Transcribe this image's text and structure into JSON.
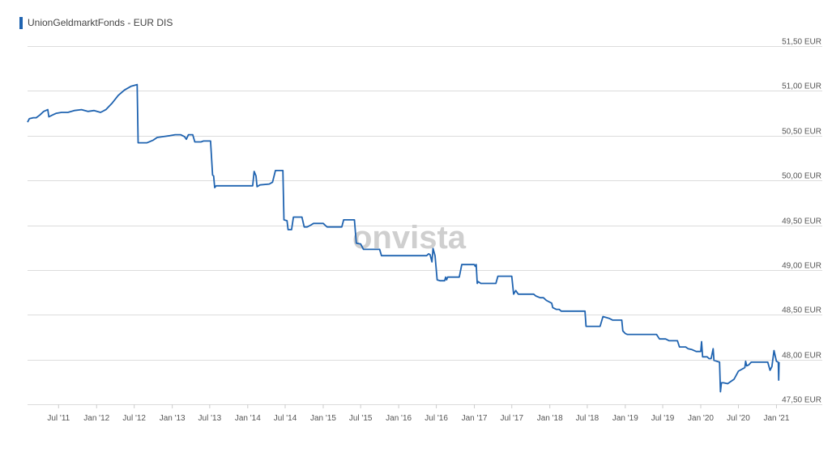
{
  "legend": {
    "label": "UnionGeldmarktFonds - EUR DIS",
    "color": "#1f63b0"
  },
  "watermark": "onvista",
  "chart_data": {
    "type": "line",
    "title": "",
    "xlabel": "",
    "ylabel": "",
    "ylim": [
      47.5,
      51.5
    ],
    "xlim": [
      "2011-02-01",
      "2021-01-15"
    ],
    "y_ticks": [
      {
        "value": 47.5,
        "label": "47,50 EUR"
      },
      {
        "value": 48.0,
        "label": "48,00 EUR"
      },
      {
        "value": 48.5,
        "label": "48,50 EUR"
      },
      {
        "value": 49.0,
        "label": "49,00 EUR"
      },
      {
        "value": 49.5,
        "label": "49,50 EUR"
      },
      {
        "value": 50.0,
        "label": "50,00 EUR"
      },
      {
        "value": 50.5,
        "label": "50,50 EUR"
      },
      {
        "value": 51.0,
        "label": "51,00 EUR"
      },
      {
        "value": 51.5,
        "label": "51,50 EUR"
      }
    ],
    "x_ticks": [
      {
        "value": "2011-07-01",
        "label": "Jul '11"
      },
      {
        "value": "2012-01-01",
        "label": "Jan '12"
      },
      {
        "value": "2012-07-01",
        "label": "Jul '12"
      },
      {
        "value": "2013-01-01",
        "label": "Jan '13"
      },
      {
        "value": "2013-07-01",
        "label": "Jul '13"
      },
      {
        "value": "2014-01-01",
        "label": "Jan '14"
      },
      {
        "value": "2014-07-01",
        "label": "Jul '14"
      },
      {
        "value": "2015-01-01",
        "label": "Jan '15"
      },
      {
        "value": "2015-07-01",
        "label": "Jul '15"
      },
      {
        "value": "2016-01-01",
        "label": "Jan '16"
      },
      {
        "value": "2016-07-01",
        "label": "Jul '16"
      },
      {
        "value": "2017-01-01",
        "label": "Jan '17"
      },
      {
        "value": "2017-07-01",
        "label": "Jul '17"
      },
      {
        "value": "2018-01-01",
        "label": "Jan '18"
      },
      {
        "value": "2018-07-01",
        "label": "Jul '18"
      },
      {
        "value": "2019-01-01",
        "label": "Jan '19"
      },
      {
        "value": "2019-07-01",
        "label": "Jul '19"
      },
      {
        "value": "2020-01-01",
        "label": "Jan '20"
      },
      {
        "value": "2020-07-01",
        "label": "Jul '20"
      },
      {
        "value": "2021-01-01",
        "label": "Jan '21"
      }
    ],
    "grid": true,
    "y_axis_side": "right",
    "series": [
      {
        "name": "UnionGeldmarktFonds - EUR DIS",
        "color": "#1f63b0",
        "points": [
          [
            "2011-02-01",
            50.65
          ],
          [
            "2011-02-10",
            50.69
          ],
          [
            "2011-03-01",
            50.7
          ],
          [
            "2011-03-15",
            50.7
          ],
          [
            "2011-04-01",
            50.73
          ],
          [
            "2011-04-20",
            50.77
          ],
          [
            "2011-05-10",
            50.79
          ],
          [
            "2011-05-15",
            50.71
          ],
          [
            "2011-06-01",
            50.73
          ],
          [
            "2011-06-20",
            50.75
          ],
          [
            "2011-07-15",
            50.76
          ],
          [
            "2011-08-15",
            50.76
          ],
          [
            "2011-09-15",
            50.78
          ],
          [
            "2011-10-20",
            50.79
          ],
          [
            "2011-11-20",
            50.77
          ],
          [
            "2011-12-20",
            50.78
          ],
          [
            "2012-01-20",
            50.76
          ],
          [
            "2012-02-15",
            50.79
          ],
          [
            "2012-03-15",
            50.86
          ],
          [
            "2012-04-15",
            50.95
          ],
          [
            "2012-05-15",
            51.01
          ],
          [
            "2012-06-15",
            51.05
          ],
          [
            "2012-07-15",
            51.07
          ],
          [
            "2012-07-20",
            50.42
          ],
          [
            "2012-09-01",
            50.42
          ],
          [
            "2012-10-01",
            50.45
          ],
          [
            "2012-10-20",
            50.48
          ],
          [
            "2012-11-20",
            50.49
          ],
          [
            "2012-12-20",
            50.5
          ],
          [
            "2013-01-15",
            50.51
          ],
          [
            "2013-02-10",
            50.51
          ],
          [
            "2013-03-01",
            50.49
          ],
          [
            "2013-03-10",
            50.46
          ],
          [
            "2013-03-20",
            50.51
          ],
          [
            "2013-04-10",
            50.51
          ],
          [
            "2013-04-20",
            50.43
          ],
          [
            "2013-05-20",
            50.43
          ],
          [
            "2013-06-01",
            50.44
          ],
          [
            "2013-07-05",
            50.44
          ],
          [
            "2013-07-15",
            50.06
          ],
          [
            "2013-07-20",
            50.05
          ],
          [
            "2013-07-25",
            49.92
          ],
          [
            "2013-08-01",
            49.94
          ],
          [
            "2014-01-25",
            49.94
          ],
          [
            "2014-02-01",
            50.1
          ],
          [
            "2014-02-10",
            50.05
          ],
          [
            "2014-02-15",
            49.93
          ],
          [
            "2014-03-01",
            49.95
          ],
          [
            "2014-04-15",
            49.96
          ],
          [
            "2014-05-01",
            49.98
          ],
          [
            "2014-05-15",
            50.11
          ],
          [
            "2014-06-20",
            50.11
          ],
          [
            "2014-06-25",
            49.56
          ],
          [
            "2014-07-10",
            49.55
          ],
          [
            "2014-07-15",
            49.45
          ],
          [
            "2014-08-01",
            49.45
          ],
          [
            "2014-08-10",
            49.59
          ],
          [
            "2014-09-20",
            49.59
          ],
          [
            "2014-10-01",
            49.48
          ],
          [
            "2014-10-15",
            49.48
          ],
          [
            "2014-11-01",
            49.5
          ],
          [
            "2014-11-15",
            49.52
          ],
          [
            "2015-01-01",
            49.52
          ],
          [
            "2015-01-15",
            49.49
          ],
          [
            "2015-01-20",
            49.48
          ],
          [
            "2015-04-01",
            49.48
          ],
          [
            "2015-04-10",
            49.56
          ],
          [
            "2015-06-01",
            49.56
          ],
          [
            "2015-06-10",
            49.3
          ],
          [
            "2015-07-01",
            49.29
          ],
          [
            "2015-07-15",
            49.23
          ],
          [
            "2015-10-01",
            49.23
          ],
          [
            "2015-10-10",
            49.16
          ],
          [
            "2016-05-15",
            49.16
          ],
          [
            "2016-05-25",
            49.18
          ],
          [
            "2016-06-01",
            49.17
          ],
          [
            "2016-06-10",
            49.09
          ],
          [
            "2016-06-15",
            49.24
          ],
          [
            "2016-06-25",
            49.16
          ],
          [
            "2016-07-05",
            48.89
          ],
          [
            "2016-07-20",
            48.88
          ],
          [
            "2016-08-10",
            48.88
          ],
          [
            "2016-08-15",
            48.92
          ],
          [
            "2016-08-20",
            48.89
          ],
          [
            "2016-08-25",
            48.92
          ],
          [
            "2016-10-20",
            48.92
          ],
          [
            "2016-11-01",
            49.06
          ],
          [
            "2017-01-01",
            49.06
          ],
          [
            "2017-01-05",
            49.04
          ],
          [
            "2017-01-10",
            49.06
          ],
          [
            "2017-01-15",
            48.85
          ],
          [
            "2017-01-20",
            48.87
          ],
          [
            "2017-02-01",
            48.85
          ],
          [
            "2017-04-15",
            48.85
          ],
          [
            "2017-04-25",
            48.93
          ],
          [
            "2017-07-01",
            48.93
          ],
          [
            "2017-07-10",
            48.73
          ],
          [
            "2017-07-20",
            48.77
          ],
          [
            "2017-08-01",
            48.73
          ],
          [
            "2017-10-15",
            48.73
          ],
          [
            "2017-10-25",
            48.71
          ],
          [
            "2017-11-15",
            48.69
          ],
          [
            "2017-12-01",
            48.69
          ],
          [
            "2017-12-15",
            48.66
          ],
          [
            "2018-01-10",
            48.63
          ],
          [
            "2018-01-15",
            48.58
          ],
          [
            "2018-02-01",
            48.56
          ],
          [
            "2018-02-15",
            48.56
          ],
          [
            "2018-02-25",
            48.54
          ],
          [
            "2018-06-20",
            48.54
          ],
          [
            "2018-06-25",
            48.37
          ],
          [
            "2018-09-01",
            48.37
          ],
          [
            "2018-09-15",
            48.48
          ],
          [
            "2018-10-15",
            48.46
          ],
          [
            "2018-11-01",
            48.44
          ],
          [
            "2018-12-15",
            48.44
          ],
          [
            "2018-12-20",
            48.32
          ],
          [
            "2019-01-01",
            48.29
          ],
          [
            "2019-01-10",
            48.28
          ],
          [
            "2019-06-01",
            48.28
          ],
          [
            "2019-06-15",
            48.23
          ],
          [
            "2019-07-15",
            48.23
          ],
          [
            "2019-08-01",
            48.21
          ],
          [
            "2019-09-10",
            48.21
          ],
          [
            "2019-09-20",
            48.14
          ],
          [
            "2019-10-20",
            48.14
          ],
          [
            "2019-11-01",
            48.12
          ],
          [
            "2019-11-20",
            48.11
          ],
          [
            "2019-12-10",
            48.09
          ],
          [
            "2020-01-01",
            48.09
          ],
          [
            "2020-01-05",
            48.2
          ],
          [
            "2020-01-10",
            48.03
          ],
          [
            "2020-02-01",
            48.03
          ],
          [
            "2020-02-10",
            48.01
          ],
          [
            "2020-02-20",
            48.01
          ],
          [
            "2020-03-01",
            48.12
          ],
          [
            "2020-03-05",
            47.99
          ],
          [
            "2020-04-01",
            47.97
          ],
          [
            "2020-04-05",
            47.64
          ],
          [
            "2020-04-10",
            47.74
          ],
          [
            "2020-04-20",
            47.74
          ],
          [
            "2020-05-10",
            47.73
          ],
          [
            "2020-06-10",
            47.78
          ],
          [
            "2020-07-01",
            47.87
          ],
          [
            "2020-08-01",
            47.91
          ],
          [
            "2020-08-05",
            47.98
          ],
          [
            "2020-08-10",
            47.93
          ],
          [
            "2020-08-20",
            47.94
          ],
          [
            "2020-09-01",
            47.97
          ],
          [
            "2020-11-20",
            47.97
          ],
          [
            "2020-12-01",
            47.88
          ],
          [
            "2020-12-10",
            47.92
          ],
          [
            "2020-12-20",
            48.1
          ],
          [
            "2021-01-01",
            47.98
          ],
          [
            "2021-01-10",
            47.97
          ],
          [
            "2021-01-12",
            47.77
          ],
          [
            "2021-01-14",
            47.97
          ]
        ]
      }
    ]
  }
}
